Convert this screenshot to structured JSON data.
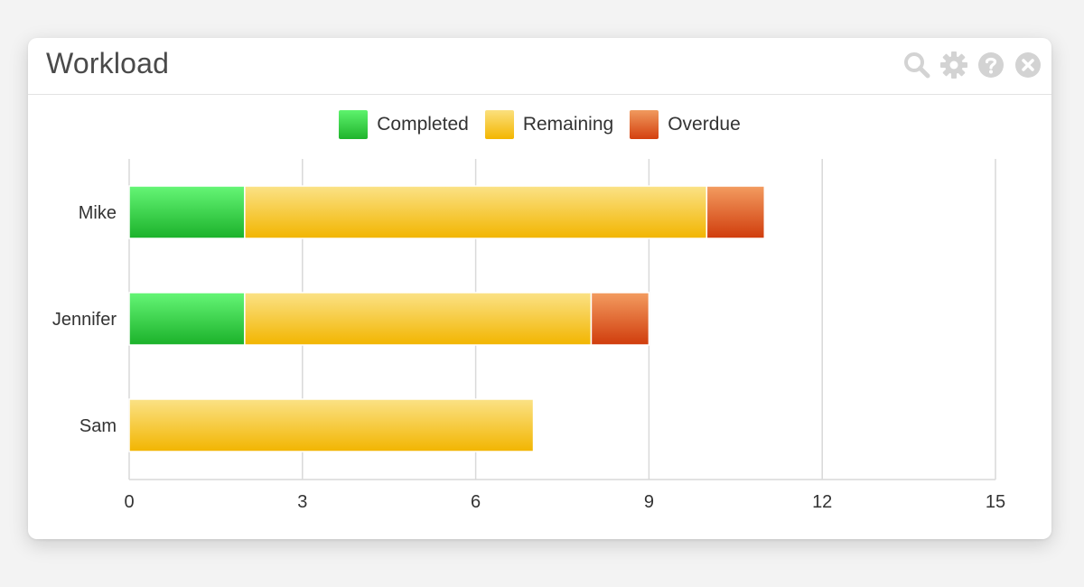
{
  "widget": {
    "title": "Workload",
    "icons": [
      "search-icon",
      "gear-icon",
      "help-icon",
      "close-icon"
    ]
  },
  "colors": {
    "completed": "#2ec93c",
    "remaining": "#f7c81a",
    "overdue": "#e05a22",
    "icon": "#d3d3d3",
    "grid": "#d9d9d9"
  },
  "chart_data": {
    "type": "bar",
    "orientation": "horizontal",
    "stacked": true,
    "categories": [
      "Mike",
      "Jennifer",
      "Sam"
    ],
    "series": [
      {
        "name": "Completed",
        "values": [
          2,
          2,
          0
        ]
      },
      {
        "name": "Remaining",
        "values": [
          8,
          6,
          7
        ]
      },
      {
        "name": "Overdue",
        "values": [
          1,
          1,
          0
        ]
      }
    ],
    "x_ticks": [
      "0",
      "3",
      "6",
      "9",
      "12",
      "15"
    ],
    "xlim": [
      0,
      15
    ],
    "grid": true,
    "legend_position": "top-center",
    "title": "",
    "xlabel": "",
    "ylabel": ""
  }
}
